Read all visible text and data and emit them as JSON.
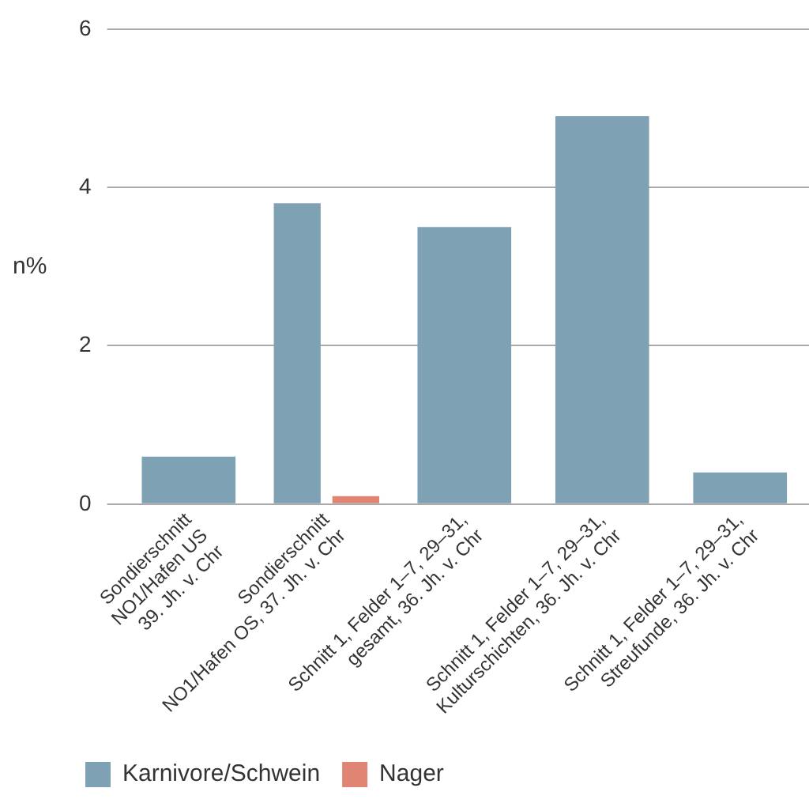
{
  "chart_data": {
    "type": "bar",
    "ylabel": "n%",
    "categories": [
      "Sondierschnitt\nNO1/Hafen US\n39. Jh. v. Chr",
      "Sondierschnitt\nNO1/Hafen OS, 37. Jh. v. Chr",
      "Schnitt 1, Felder 1–7, 29–31,\ngesamt, 36. Jh. v. Chr",
      "Schnitt 1, Felder 1–7, 29–31,\nKulturschichten, 36. Jh. v. Chr",
      "Schnitt 1, Felder 1–7, 29–31,\nStreufunde, 36. Jh. v. Chr"
    ],
    "series": [
      {
        "name": "Karnivore/Schwein",
        "color": "#7fa1b4",
        "values": [
          0.6,
          3.8,
          3.5,
          4.9,
          0.4
        ]
      },
      {
        "name": "Nager",
        "color": "#e08474",
        "values": [
          null,
          0.1,
          null,
          null,
          null
        ]
      }
    ],
    "ylim": [
      0,
      6
    ],
    "yticks": [
      0,
      2,
      4,
      6
    ],
    "grid": "y",
    "legend": "bottom left"
  }
}
